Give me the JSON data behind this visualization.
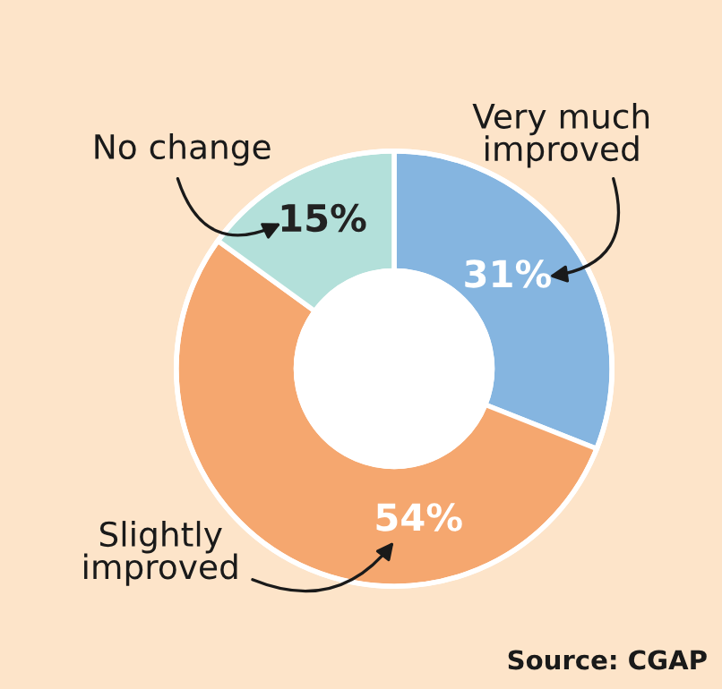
{
  "chart_data": {
    "type": "donut",
    "categories": [
      "Very much improved",
      "Slightly improved",
      "No change"
    ],
    "values": [
      31,
      54,
      15
    ],
    "colors": [
      "#85b5e0",
      "#f5a76f",
      "#b3e0da"
    ],
    "value_labels": [
      "31%",
      "54%",
      "15%"
    ],
    "annotations": [
      "Source: CGAP"
    ]
  }
}
